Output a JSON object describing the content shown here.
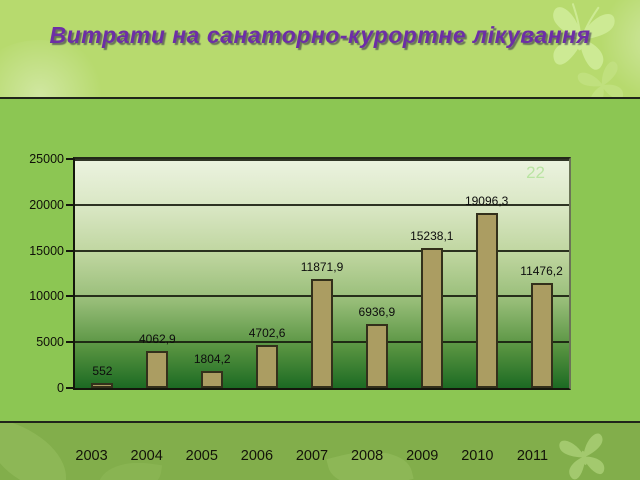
{
  "slide": {
    "title": "Витрати на санаторно-курортне лікування",
    "slide_number": "22"
  },
  "chart_data": {
    "type": "bar",
    "title": "Витрати на санаторно-курортне лікування",
    "categories": [
      "2003",
      "2004",
      "2005",
      "2006",
      "2007",
      "2008",
      "2009",
      "2010",
      "2011"
    ],
    "values": [
      552,
      4062.9,
      1804.2,
      4702.6,
      11871.9,
      6936.9,
      15238.1,
      19096.3,
      11476.2
    ],
    "value_labels": [
      "552",
      "4062,9",
      "1804,2",
      "4702,6",
      "11871,9",
      "6936,9",
      "15238,1",
      "19096,3",
      "11476,2"
    ],
    "xlabel": "",
    "ylabel": "",
    "ylim": [
      0,
      25000
    ],
    "yticks": [
      0,
      5000,
      10000,
      15000,
      20000,
      25000
    ],
    "grid": true,
    "legend": "none",
    "bar_color": "#ab9d62",
    "bar_border_color": "#33301b",
    "plot_gradient_top": "#ecf3e0",
    "plot_gradient_bottom": "#1c6a23"
  },
  "colors": {
    "header_bg": "#b7da6e",
    "body_bg": "#8cc653",
    "footer_bg": "#82ae4b",
    "divider": "#20251a",
    "title_text": "#6d2ea6",
    "slide_number_text": "#b9e4a2",
    "axis_text": "#101008"
  }
}
